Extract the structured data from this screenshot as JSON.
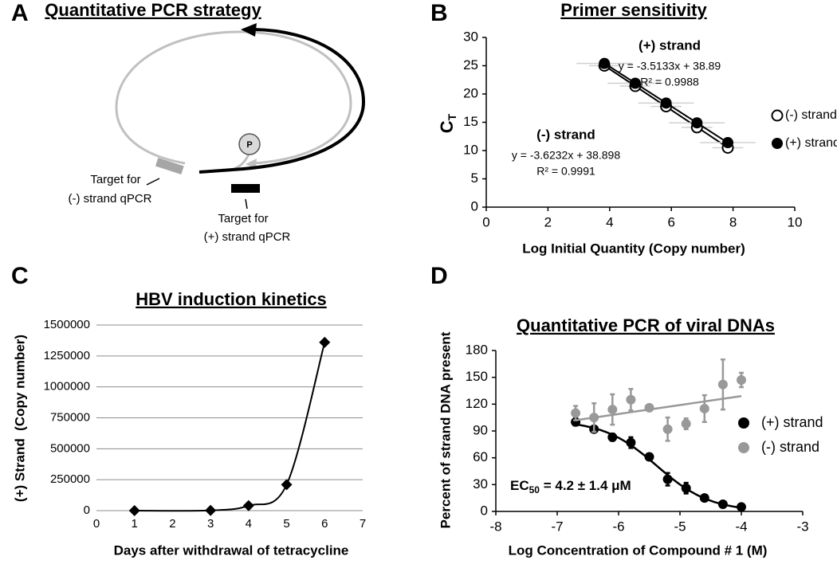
{
  "diagram": {
    "panel": "A",
    "title": "Quantitative PCR strategy",
    "promoter": "P",
    "minus_target": [
      "Target for",
      "(-) strand qPCR"
    ],
    "plus_target": [
      "Target for",
      "(+) strand qPCR"
    ]
  },
  "chart_data": [
    {
      "type": "scatter",
      "panel": "B",
      "title": "Primer sensitivity",
      "xlabel": "Log Initial Quantity (Copy number)",
      "ylabel": "C",
      "ylabel_sub": "T",
      "xlim": [
        0,
        10
      ],
      "xticks": [
        0,
        2,
        4,
        6,
        8,
        10
      ],
      "ylim": [
        0,
        30
      ],
      "yticks": [
        0,
        5,
        10,
        15,
        20,
        25,
        30
      ],
      "legend": "right",
      "series": [
        {
          "name": "(-) strand",
          "color": "#000000",
          "marker": "open-circle",
          "x": [
            3.83,
            4.83,
            5.83,
            6.83,
            7.83
          ],
          "values": [
            25.0,
            21.4,
            17.8,
            14.1,
            10.5
          ],
          "xerr": [
            0.5,
            0.5,
            0.5,
            0.5,
            0.5
          ],
          "trendline": {
            "slope": -3.6232,
            "intercept": 38.898
          },
          "equation": "y = -3.6232x + 38.898",
          "r2": "R² = 0.9991"
        },
        {
          "name": "(+) strand",
          "color": "#000000",
          "marker": "filled-circle",
          "x": [
            3.83,
            4.83,
            5.83,
            6.83,
            7.83
          ],
          "values": [
            25.4,
            21.9,
            18.4,
            14.9,
            11.4
          ],
          "xerr": [
            0.9,
            0.9,
            0.9,
            0.9,
            0.9
          ],
          "trendline": {
            "slope": -3.5133,
            "intercept": 38.89
          },
          "equation": "y = -3.5133x + 38.89",
          "r2": "R² = 0.9988"
        }
      ]
    },
    {
      "type": "line",
      "panel": "C",
      "title": "HBV induction kinetics",
      "xlabel": "Days after withdrawal of tetracycline",
      "ylabel": "(+) Strand  (Copy number)",
      "xlim": [
        0,
        7
      ],
      "xticks": [
        0,
        1,
        2,
        3,
        4,
        5,
        6,
        7
      ],
      "ylim": [
        0,
        1500000
      ],
      "yticks": [
        0,
        250000,
        500000,
        750000,
        1000000,
        1250000,
        1500000
      ],
      "grid": true,
      "smooth": true,
      "x": [
        1,
        3,
        4,
        5,
        6
      ],
      "values": [
        0,
        2000,
        40000,
        210000,
        1360000
      ],
      "color": "#000000",
      "marker": "diamond"
    },
    {
      "type": "scatter",
      "panel": "D",
      "title": "Quantitative PCR of viral DNAs",
      "xlabel": "Log Concentration of Compound # 1 (M)",
      "ylabel": "Percent of strand DNA present",
      "xlim": [
        -8,
        -3
      ],
      "xticks": [
        -8,
        -7,
        -6,
        -5,
        -4,
        -3
      ],
      "ylim": [
        0,
        180
      ],
      "yticks": [
        0,
        30,
        60,
        90,
        120,
        150,
        180
      ],
      "legend": "right",
      "x": [
        -6.7,
        -6.4,
        -6.1,
        -5.8,
        -5.5,
        -5.2,
        -4.9,
        -4.6,
        -4.3,
        -4.0
      ],
      "series": [
        {
          "name": "(+) strand",
          "color": "#000000",
          "marker": "filled-circle",
          "values": [
            100,
            92,
            83,
            77,
            61,
            36,
            26,
            15,
            8,
            5
          ],
          "errors": [
            4,
            2,
            4,
            6,
            2,
            7,
            6,
            2,
            1,
            1
          ],
          "fit": {
            "model": "sigmoid",
            "top": 102,
            "bottom": 0,
            "log_ec50": -5.377,
            "hill": 1
          }
        },
        {
          "name": "(-) strand",
          "color": "#999999",
          "marker": "filled-circle",
          "values": [
            110,
            105,
            114,
            125,
            116,
            92,
            98,
            115,
            142,
            147
          ],
          "errors": [
            8,
            16,
            17,
            12,
            2,
            13,
            6,
            15,
            28,
            8
          ],
          "fit": {
            "model": "linear",
            "slope": 10,
            "intercept": 169
          }
        }
      ],
      "annotation": {
        "text": "EC",
        "sub": "50",
        "rest": " = 4.2 ± 1.4 μM"
      }
    }
  ]
}
